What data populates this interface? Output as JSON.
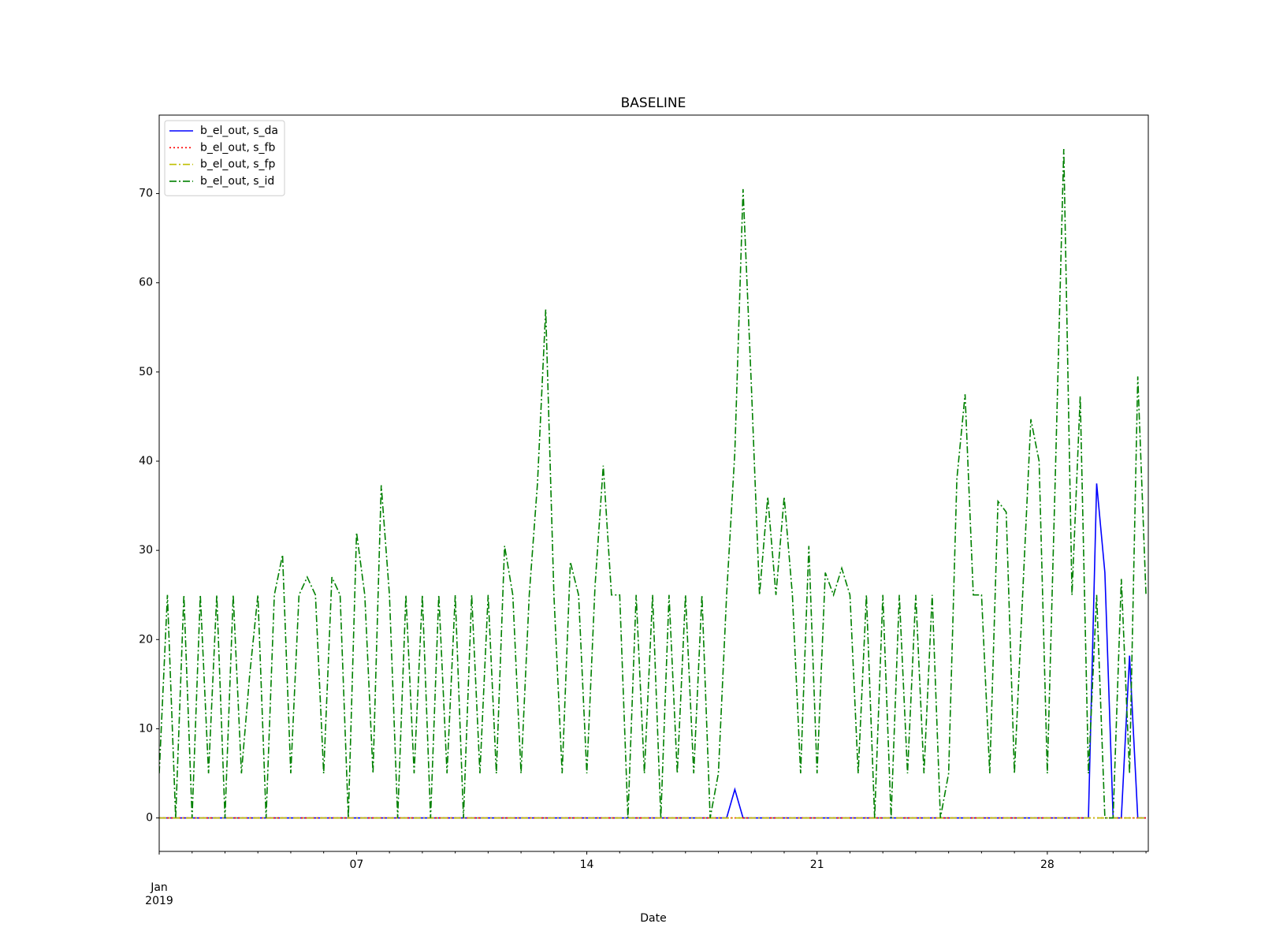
{
  "chart_data": {
    "type": "line",
    "title": "BASELINE",
    "x_label": "Date",
    "x": [
      0,
      0.25,
      0.5,
      0.75,
      1,
      1.25,
      1.5,
      1.75,
      2,
      2.25,
      2.5,
      2.75,
      3,
      3.25,
      3.5,
      3.75,
      4,
      4.25,
      4.5,
      4.75,
      5,
      5.25,
      5.5,
      5.75,
      6,
      6.25,
      6.5,
      6.75,
      7,
      7.25,
      7.5,
      7.75,
      8,
      8.25,
      8.5,
      8.75,
      9,
      9.25,
      9.5,
      9.75,
      10,
      10.25,
      10.5,
      10.75,
      11,
      11.25,
      11.5,
      11.75,
      12,
      12.25,
      12.5,
      12.75,
      13,
      13.25,
      13.5,
      13.75,
      14,
      14.25,
      14.5,
      14.75,
      15,
      15.25,
      15.5,
      15.75,
      16,
      16.25,
      16.5,
      16.75,
      17,
      17.25,
      17.5,
      17.75,
      18,
      18.25,
      18.5,
      18.75,
      19,
      19.25,
      19.5,
      19.75,
      20,
      20.25,
      20.5,
      20.75,
      21,
      21.25,
      21.5,
      21.75,
      22,
      22.25,
      22.5,
      22.75,
      23,
      23.25,
      23.5,
      23.75,
      24,
      24.25,
      24.5,
      24.75,
      25,
      25.25,
      25.5,
      25.75,
      26,
      26.25,
      26.5,
      26.75,
      27,
      27.25,
      27.5,
      27.75,
      28,
      28.25,
      28.5,
      28.75,
      29,
      29.25,
      29.5,
      29.75,
      30
    ],
    "series": [
      {
        "name": "b_el_out, s_da",
        "color": "#0000ff",
        "linestyle": "solid",
        "values": [
          0,
          0,
          0,
          0,
          0,
          0,
          0,
          0,
          0,
          0,
          0,
          0,
          0,
          0,
          0,
          0,
          0,
          0,
          0,
          0,
          0,
          0,
          0,
          0,
          0,
          0,
          0,
          0,
          0,
          0,
          0,
          0,
          0,
          0,
          0,
          0,
          0,
          0,
          0,
          0,
          0,
          0,
          0,
          0,
          0,
          0,
          0,
          0,
          0,
          0,
          0,
          0,
          0,
          0,
          0,
          0,
          0,
          0,
          0,
          0,
          0,
          0,
          0,
          0,
          0,
          0,
          0,
          0,
          0,
          0,
          3.2,
          0,
          0,
          0,
          0,
          0,
          0,
          0,
          0,
          0,
          0,
          0,
          0,
          0,
          0,
          0,
          0,
          0,
          0,
          0,
          0,
          0,
          0,
          0,
          0,
          0,
          0,
          0,
          0,
          0,
          0,
          0,
          0,
          0,
          0,
          0,
          0,
          0,
          0,
          0,
          0,
          0,
          0,
          0,
          37.5,
          27.5,
          0,
          0,
          18.2,
          0,
          0
        ]
      },
      {
        "name": "b_el_out, s_fb",
        "color": "#ff0000",
        "linestyle": "dotted",
        "values": [
          0,
          0,
          0,
          0,
          0,
          0,
          0,
          0,
          0,
          0,
          0,
          0,
          0,
          0,
          0,
          0,
          0,
          0,
          0,
          0,
          0,
          0,
          0,
          0,
          0,
          0,
          0,
          0,
          0,
          0,
          0,
          0,
          0,
          0,
          0,
          0,
          0,
          0,
          0,
          0,
          0,
          0,
          0,
          0,
          0,
          0,
          0,
          0,
          0,
          0,
          0,
          0,
          0,
          0,
          0,
          0,
          0,
          0,
          0,
          0,
          0,
          0,
          0,
          0,
          0,
          0,
          0,
          0,
          0,
          0,
          0,
          0,
          0,
          0,
          0,
          0,
          0,
          0,
          0,
          0,
          0,
          0,
          0,
          0,
          0,
          0,
          0,
          0,
          0,
          0,
          0,
          0,
          0,
          0,
          0,
          0,
          0,
          0,
          0,
          0,
          0,
          0,
          0,
          0,
          0,
          0,
          0,
          0,
          0,
          0,
          0,
          0,
          0,
          0,
          0,
          0,
          0,
          0,
          0,
          0,
          0
        ]
      },
      {
        "name": "b_el_out, s_fp",
        "color": "#bfbf00",
        "linestyle": "dashdot",
        "values": [
          0,
          0,
          0,
          0,
          0,
          0,
          0,
          0,
          0,
          0,
          0,
          0,
          0,
          0,
          0,
          0,
          0,
          0,
          0,
          0,
          0,
          0,
          0,
          0,
          0,
          0,
          0,
          0,
          0,
          0,
          0,
          0,
          0,
          0,
          0,
          0,
          0,
          0,
          0,
          0,
          0,
          0,
          0,
          0,
          0,
          0,
          0,
          0,
          0,
          0,
          0,
          0,
          0,
          0,
          0,
          0,
          0,
          0,
          0,
          0,
          0,
          0,
          0,
          0,
          0,
          0,
          0,
          0,
          0,
          0,
          0,
          0,
          0,
          0,
          0,
          0,
          0,
          0,
          0,
          0,
          0,
          0,
          0,
          0,
          0,
          0,
          0,
          0,
          0,
          0,
          0,
          0,
          0,
          0,
          0,
          0,
          0,
          0,
          0,
          0,
          0,
          0,
          0,
          0,
          0,
          0,
          0,
          0,
          0,
          0,
          0,
          0,
          0,
          0,
          0,
          0,
          0,
          0,
          0,
          0,
          0
        ]
      },
      {
        "name": "b_el_out, s_id",
        "color": "#008000",
        "linestyle": "dashdot",
        "values": [
          5,
          25,
          0,
          25,
          0,
          25,
          5,
          25,
          0,
          25,
          5,
          16,
          25,
          0,
          25,
          29.5,
          5,
          25,
          27,
          25,
          5,
          27,
          25,
          0,
          32,
          25,
          5,
          37.3,
          25,
          0,
          25,
          5,
          25,
          0,
          25,
          5,
          25,
          0,
          25,
          5,
          25,
          5,
          30.5,
          25,
          5,
          25,
          37.5,
          57,
          25,
          5,
          28.7,
          25,
          5,
          26,
          39.5,
          25,
          25,
          0,
          25,
          5,
          25,
          0,
          25,
          5,
          25,
          5,
          25,
          0,
          5,
          25,
          41,
          70.5,
          48.7,
          25,
          36,
          25,
          36,
          25,
          5,
          30.5,
          5,
          27.5,
          25,
          28,
          25,
          5,
          25,
          0,
          25,
          0,
          25,
          5,
          25,
          5,
          25,
          0,
          5,
          38,
          47.5,
          25,
          25,
          5,
          35.5,
          34.3,
          5,
          25,
          44.7,
          40,
          5,
          39.3,
          75,
          25,
          47.3,
          5,
          25,
          0,
          0,
          26.8,
          5,
          49.5,
          25
        ]
      }
    ],
    "xlim": [
      0,
      30.07
    ],
    "xticks": [
      {
        "value": 0,
        "label": "Jan 2019"
      },
      {
        "value": 6,
        "label": "07"
      },
      {
        "value": 13,
        "label": "14"
      },
      {
        "value": 20,
        "label": "21"
      },
      {
        "value": 27,
        "label": "28"
      }
    ],
    "xminorticks": [
      1,
      2,
      3,
      4,
      5,
      7,
      8,
      9,
      10,
      11,
      12,
      14,
      15,
      16,
      17,
      18,
      19,
      21,
      22,
      23,
      24,
      25,
      26,
      28,
      29,
      30
    ],
    "ylim": [
      -3.75,
      78.8
    ],
    "yticks": [
      0,
      10,
      20,
      30,
      40,
      50,
      60,
      70
    ],
    "grid": false,
    "legend": "upper left"
  }
}
